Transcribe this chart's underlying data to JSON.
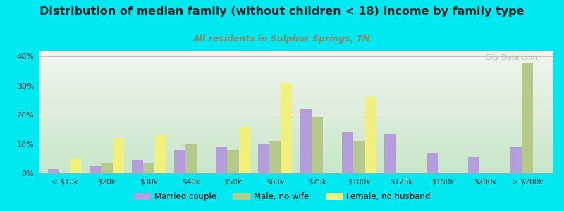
{
  "title": "Distribution of median family (without children < 18) income by family type",
  "subtitle": "All residents in Sulphur Springs, TN",
  "categories": [
    "< $10k",
    "$20k",
    "$30k",
    "$40k",
    "$50k",
    "$60k",
    "$75k",
    "$100k",
    "$125k",
    "$150k",
    "$200k",
    "> $200k"
  ],
  "married_couple": [
    1.5,
    2.5,
    4.5,
    8.0,
    9.0,
    10.0,
    22.0,
    14.0,
    13.5,
    7.0,
    5.5,
    9.0
  ],
  "male_no_wife": [
    0.0,
    3.5,
    3.5,
    10.0,
    8.0,
    11.0,
    19.0,
    11.0,
    0.0,
    0.0,
    0.0,
    38.0
  ],
  "female_no_husband": [
    5.0,
    12.0,
    13.0,
    0.0,
    16.0,
    31.0,
    0.0,
    26.0,
    0.0,
    0.0,
    0.0,
    0.0
  ],
  "married_color": "#b39ddb",
  "male_color": "#b5c98a",
  "female_color": "#f0f07a",
  "background_color": "#00e8f0",
  "plot_bg_top": "#f2f5ee",
  "plot_bg_bottom": "#c8e6c9",
  "title_color": "#222222",
  "subtitle_color": "#888866",
  "ylim": [
    0,
    42
  ],
  "yticks": [
    0,
    10,
    20,
    30,
    40
  ],
  "ytick_labels": [
    "0%",
    "10%",
    "20%",
    "30%",
    "40%"
  ],
  "bar_width": 0.27,
  "watermark": "City-Data.com",
  "legend_married": "Married couple",
  "legend_male": "Male, no wife",
  "legend_female": "Female, no husband"
}
